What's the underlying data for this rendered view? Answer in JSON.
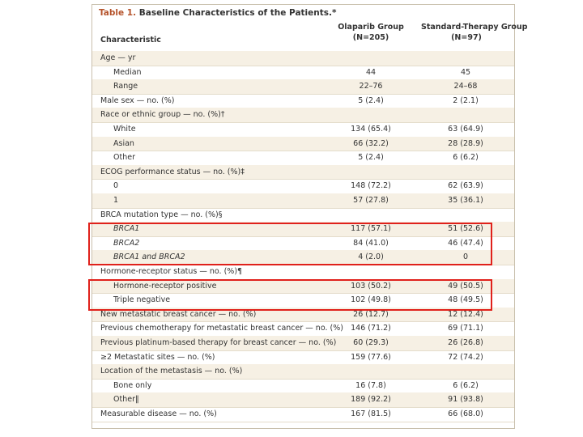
{
  "title": {
    "label": "Table 1.",
    "text": "Baseline Characteristics of the Patients.*"
  },
  "table": {
    "columns": [
      {
        "name": "Characteristic"
      },
      {
        "name": "Olaparib Group",
        "n": "(N=205)"
      },
      {
        "name": "Standard-Therapy Group",
        "n": "(N=97)"
      }
    ],
    "rows": [
      [
        "Age — yr"
      ],
      [
        "Median",
        "44",
        "45"
      ],
      [
        "Range",
        "22–76",
        "24–68"
      ],
      [
        "Male sex — no. (%)",
        "5 (2.4)",
        "2 (2.1)"
      ],
      [
        "Race or ethnic group — no. (%)†"
      ],
      [
        "White",
        "134 (65.4)",
        "63 (64.9)"
      ],
      [
        "Asian",
        "66 (32.2)",
        "28 (28.9)"
      ],
      [
        "Other",
        "5 (2.4)",
        "6 (6.2)"
      ],
      [
        "ECOG performance status — no. (%)‡"
      ],
      [
        "0",
        "148 (72.2)",
        "62 (63.9)"
      ],
      [
        "1",
        "57 (27.8)",
        "35 (36.1)"
      ],
      [
        "BRCA mutation type — no. (%)§"
      ],
      [
        "BRCA1",
        "117 (57.1)",
        "51 (52.6)"
      ],
      [
        "BRCA2",
        "84 (41.0)",
        "46 (47.4)"
      ],
      [
        "BRCA1 and BRCA2",
        "4 (2.0)",
        "0"
      ],
      [
        "Hormone-receptor status — no. (%)¶"
      ],
      [
        "Hormone-receptor positive",
        "103 (50.2)",
        "49 (50.5)"
      ],
      [
        "Triple negative",
        "102 (49.8)",
        "48 (49.5)"
      ],
      [
        "New metastatic breast cancer — no. (%)",
        "26 (12.7)",
        "12 (12.4)"
      ],
      [
        "Previous chemotherapy for metastatic breast cancer — no. (%)",
        "146 (71.2)",
        "69 (71.1)"
      ],
      [
        "Previous platinum-based therapy for breast cancer — no. (%)",
        "60 (29.3)",
        "26 (26.8)"
      ],
      [
        "≥2 Metastatic sites — no. (%)",
        "159 (77.6)",
        "72 (74.2)"
      ],
      [
        "Location of the metastasis — no. (%)"
      ],
      [
        "Bone only",
        "16 (7.8)",
        "6 (6.2)"
      ],
      [
        "Other‖",
        "189 (92.2)",
        "91 (93.8)"
      ],
      [
        "Measurable disease — no. (%)",
        "167 (81.5)",
        "66 (68.0)"
      ]
    ]
  }
}
